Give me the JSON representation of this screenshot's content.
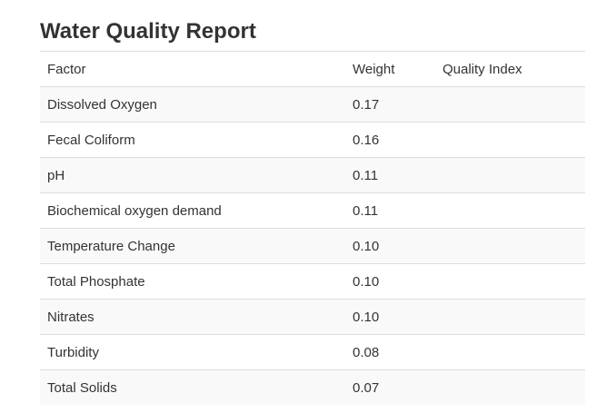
{
  "report": {
    "title": "Water Quality Report",
    "columns": {
      "factor": "Factor",
      "weight": "Weight",
      "quality_index": "Quality Index"
    },
    "rows": [
      {
        "factor": "Dissolved Oxygen",
        "weight": "0.17",
        "quality_index": ""
      },
      {
        "factor": "Fecal Coliform",
        "weight": "0.16",
        "quality_index": ""
      },
      {
        "factor": "pH",
        "weight": "0.11",
        "quality_index": ""
      },
      {
        "factor": "Biochemical oxygen demand",
        "weight": "0.11",
        "quality_index": ""
      },
      {
        "factor": "Temperature Change",
        "weight": "0.10",
        "quality_index": ""
      },
      {
        "factor": "Total Phosphate",
        "weight": "0.10",
        "quality_index": ""
      },
      {
        "factor": "Nitrates",
        "weight": "0.10",
        "quality_index": ""
      },
      {
        "factor": "Turbidity",
        "weight": "0.08",
        "quality_index": ""
      },
      {
        "factor": "Total Solids",
        "weight": "0.07",
        "quality_index": ""
      }
    ]
  }
}
